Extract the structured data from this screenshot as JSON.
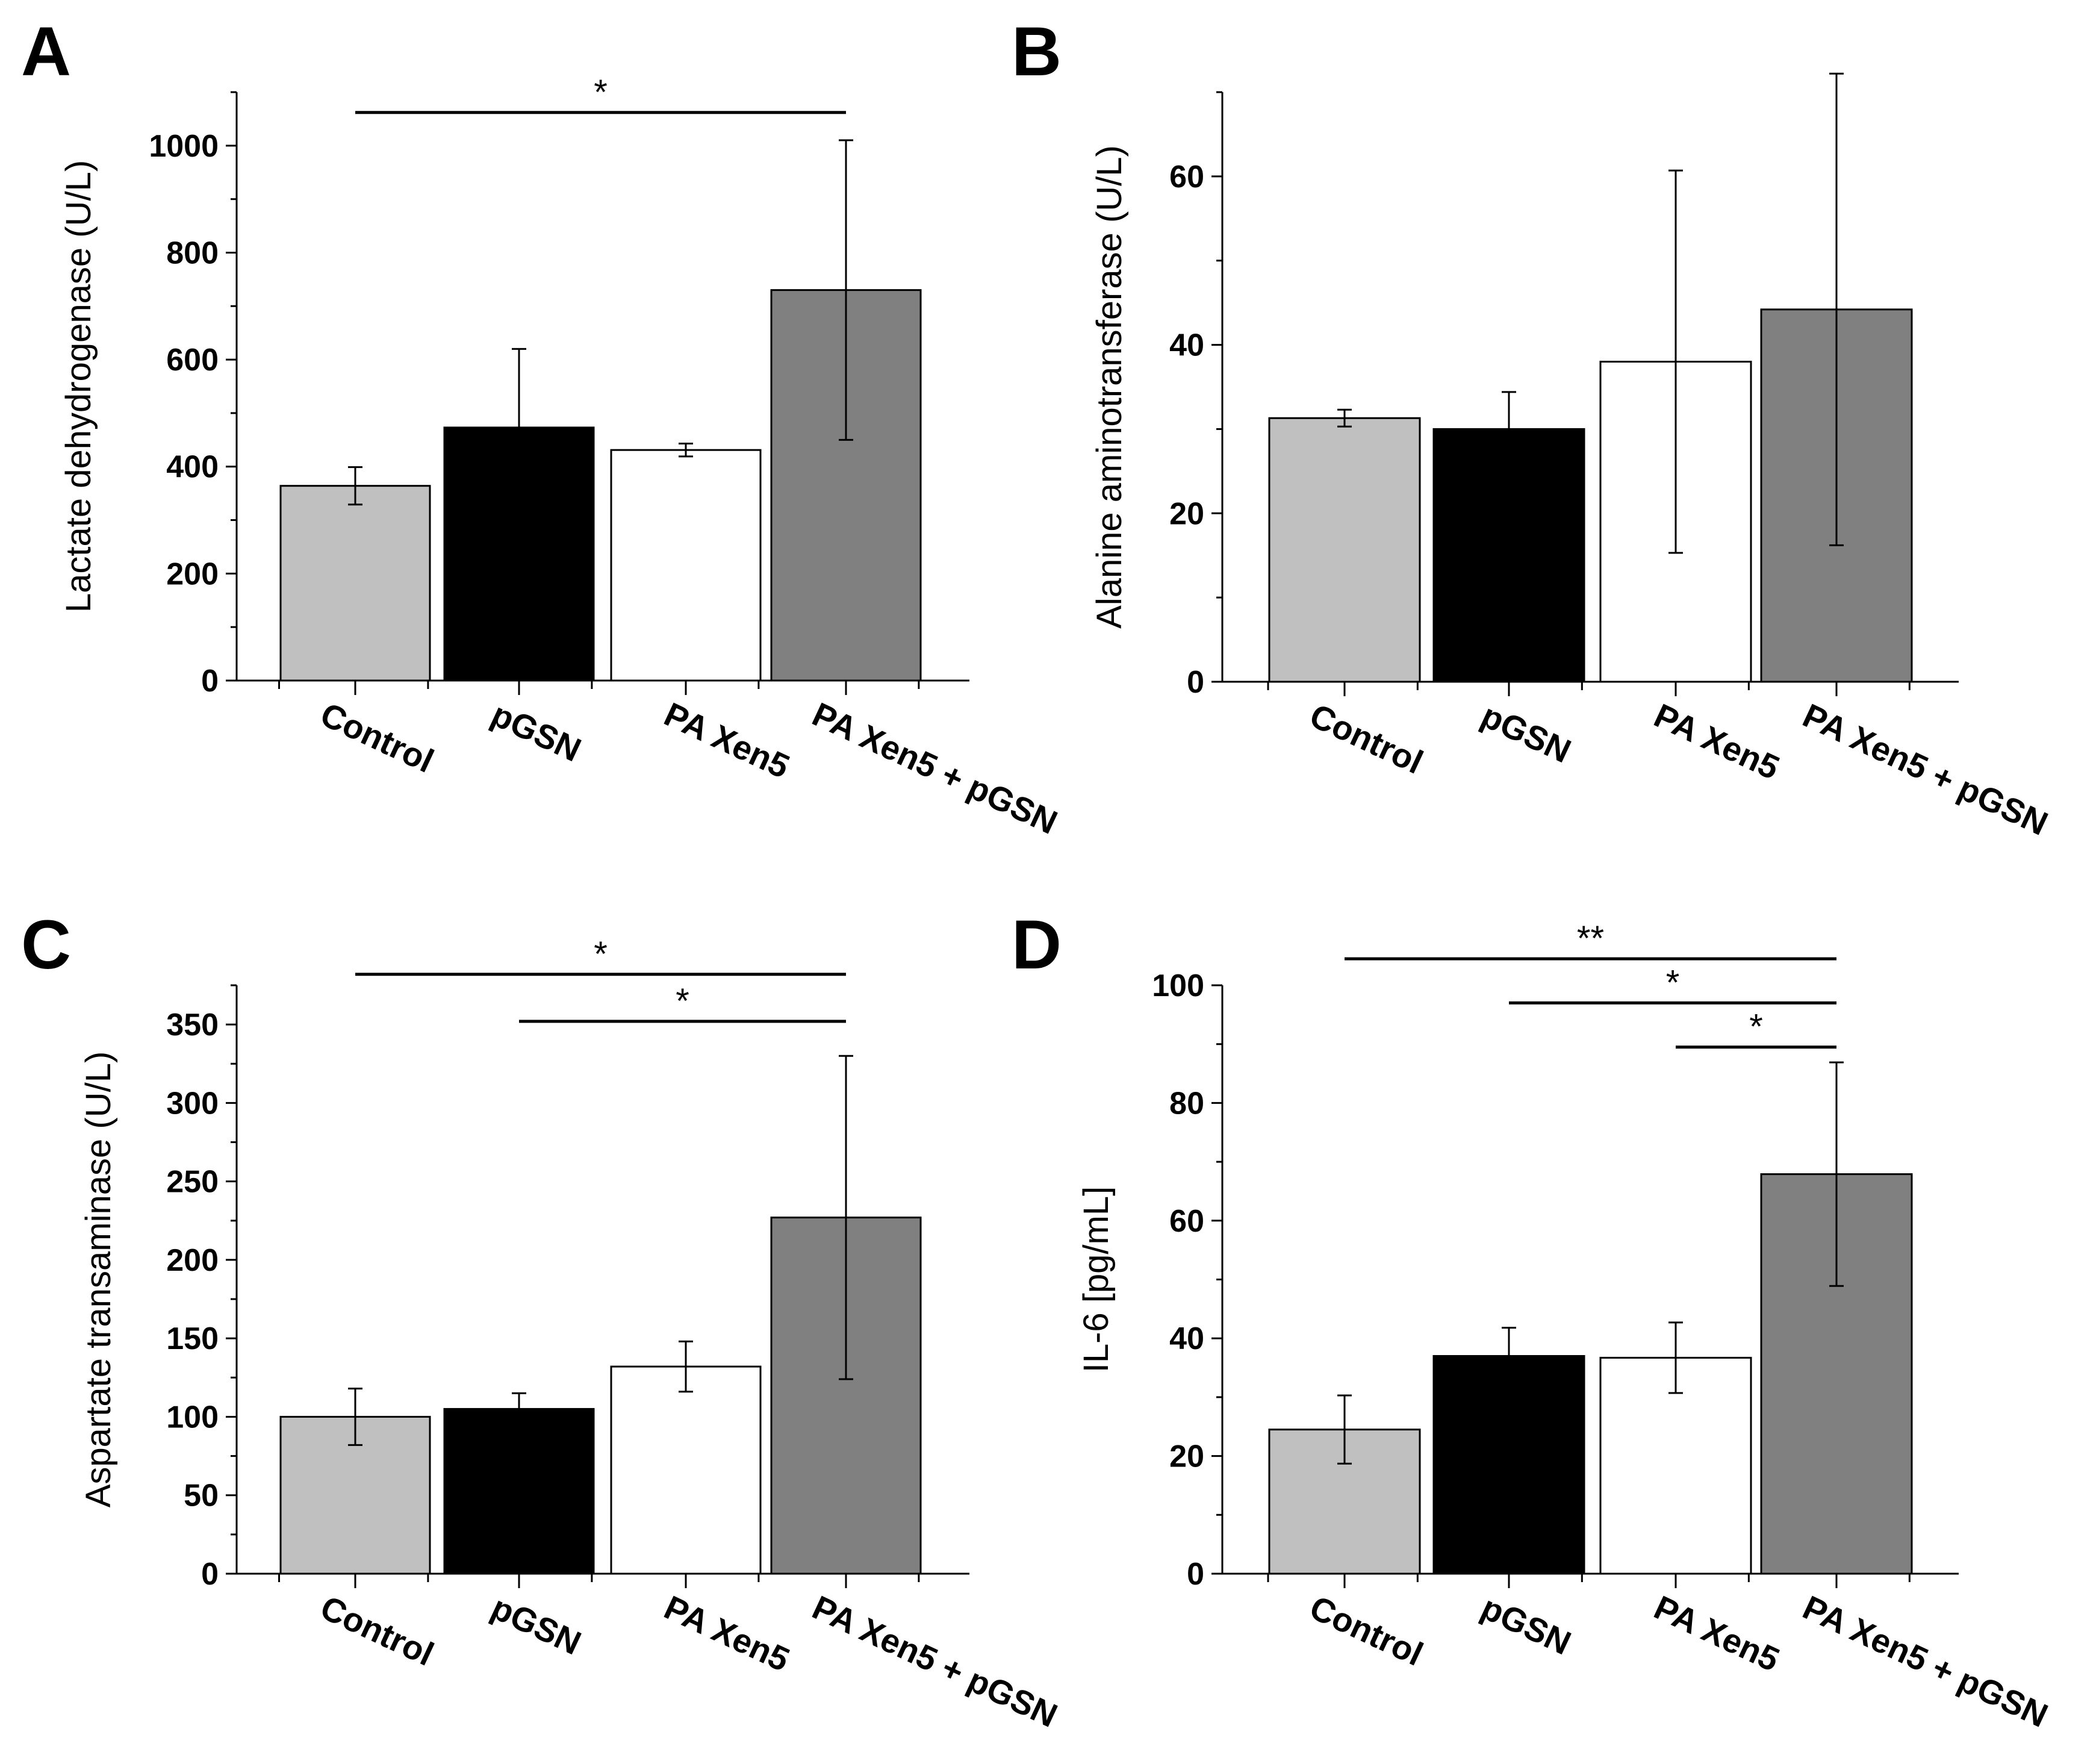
{
  "chart_data": [
    {
      "type": "bar",
      "panel": "A",
      "ylabel": "Lactate dehydrogenase (U/L)",
      "xlabel": "",
      "categories": [
        "Control",
        "pGSN",
        "PA Xen5",
        "PA Xen5 + pGSN"
      ],
      "values": [
        364,
        473,
        431,
        730
      ],
      "errors": [
        35,
        147,
        12,
        280
      ],
      "colors": [
        "#c0c0c0",
        "#000000",
        "#ffffff",
        "#808080"
      ],
      "ylim": [
        0,
        1100
      ],
      "yticks": [
        0,
        200,
        400,
        600,
        800,
        1000
      ],
      "yminor_step": 100,
      "significance": [
        {
          "from": 0,
          "to": 3,
          "label": "*",
          "level": 1062
        }
      ]
    },
    {
      "type": "bar",
      "panel": "B",
      "ylabel": "Alanine aminotransferase (U/L)",
      "xlabel": "",
      "categories": [
        "Control",
        "pGSN",
        "PA Xen5",
        "PA Xen5 + pGSN"
      ],
      "values": [
        31.3,
        30.0,
        38.0,
        44.2
      ],
      "errors": [
        1.0,
        4.4,
        22.7,
        28.0
      ],
      "colors": [
        "#c0c0c0",
        "#000000",
        "#ffffff",
        "#808080"
      ],
      "ylim": [
        0,
        70
      ],
      "yticks": [
        0,
        20,
        40,
        60
      ],
      "yminor_step": 10,
      "significance": []
    },
    {
      "type": "bar",
      "panel": "C",
      "ylabel": "Aspartate transaminase (U/L)",
      "xlabel": "",
      "categories": [
        "Control",
        "pGSN",
        "PA Xen5",
        "PA Xen5 + pGSN"
      ],
      "values": [
        100,
        105,
        132,
        227
      ],
      "errors": [
        18,
        10,
        16,
        103
      ],
      "colors": [
        "#c0c0c0",
        "#000000",
        "#ffffff",
        "#808080"
      ],
      "ylim": [
        0,
        375
      ],
      "yticks": [
        0,
        50,
        100,
        150,
        200,
        250,
        300,
        350
      ],
      "yminor_step": 25,
      "significance": [
        {
          "from": 0,
          "to": 3,
          "label": "*",
          "level": 382
        },
        {
          "from": 1,
          "to": 3,
          "label": "*",
          "level": 352
        }
      ]
    },
    {
      "type": "bar",
      "panel": "D",
      "ylabel": "IL-6 [pg/mL]",
      "xlabel": "",
      "categories": [
        "Control",
        "pGSN",
        "PA Xen5",
        "PA Xen5 + pGSN"
      ],
      "values": [
        24.5,
        37.0,
        36.7,
        67.9
      ],
      "errors": [
        5.8,
        4.8,
        6.0,
        19.0
      ],
      "colors": [
        "#c0c0c0",
        "#000000",
        "#ffffff",
        "#808080"
      ],
      "ylim": [
        0,
        100
      ],
      "yticks": [
        0,
        20,
        40,
        60,
        80,
        100
      ],
      "yminor_step": 10,
      "significance": [
        {
          "from": 0,
          "to": 3,
          "label": "**",
          "level": 104.5
        },
        {
          "from": 1,
          "to": 3,
          "label": "*",
          "level": 97.0
        },
        {
          "from": 2,
          "to": 3,
          "label": "*",
          "level": 89.5
        }
      ]
    }
  ]
}
